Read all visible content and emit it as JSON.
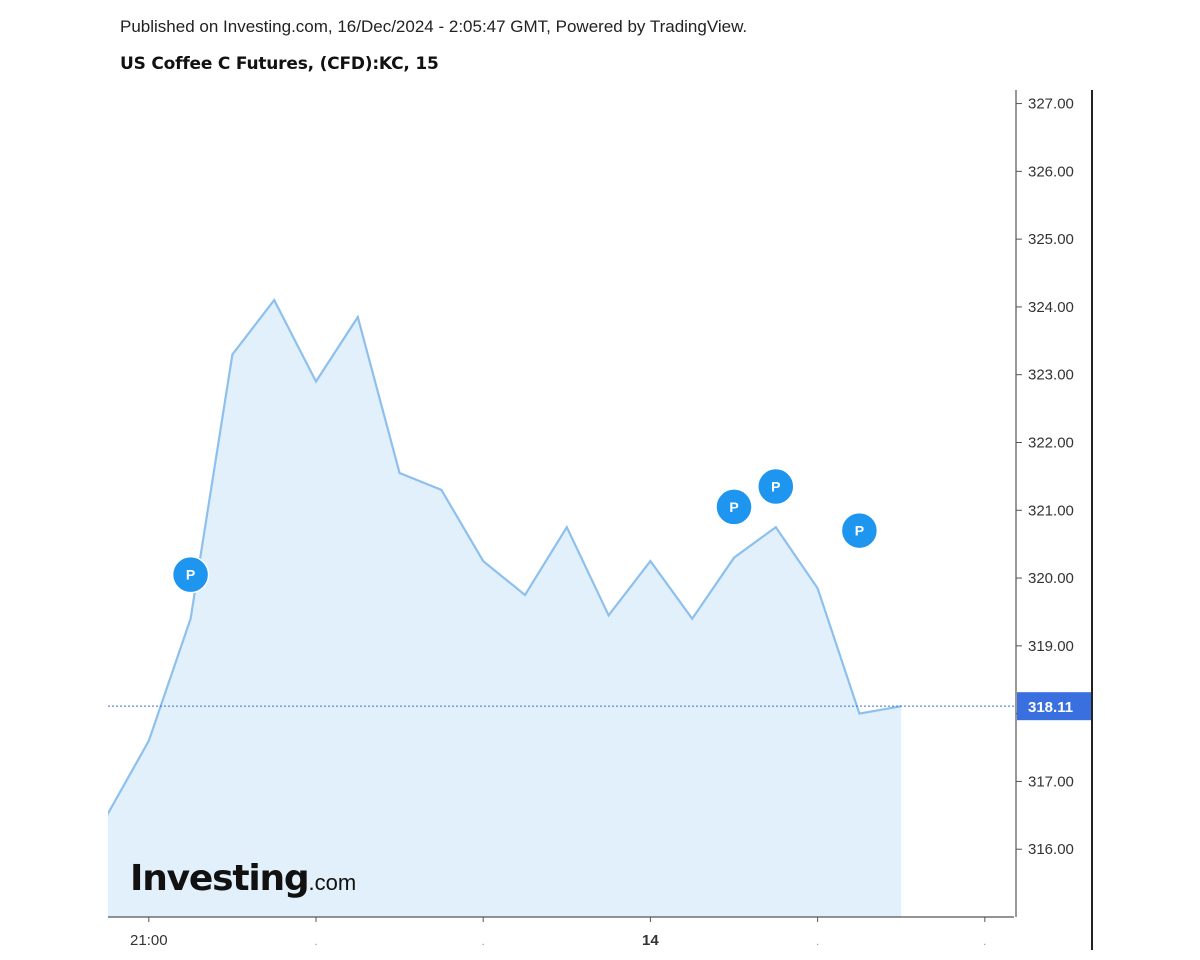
{
  "header": {
    "published": "Published on Investing.com, 16/Dec/2024 - 2:05:47 GMT, Powered by TradingView.",
    "title": "US Coffee C Futures, (CFD):KC, 15"
  },
  "logo": {
    "main": "Investing",
    "suffix": ".com"
  },
  "chart_data": {
    "type": "area",
    "ylim": [
      315.0,
      327.2
    ],
    "x_count": 19,
    "yticks": [
      316,
      317,
      318,
      319,
      320,
      321,
      322,
      323,
      324,
      325,
      326,
      327
    ],
    "ytick_labels": [
      "316.00",
      "317.00",
      "318.00",
      "319.00",
      "320.00",
      "321.00",
      "322.00",
      "323.00",
      "324.00",
      "325.00",
      "326.00",
      "327.00"
    ],
    "xtick_labels": [
      {
        "index": 1,
        "label": "21:00",
        "bold": false
      },
      {
        "index": 5,
        "label": "",
        "bold": false
      },
      {
        "index": 9,
        "label": "",
        "bold": false
      },
      {
        "index": 13,
        "label": "14",
        "bold": true
      },
      {
        "index": 17,
        "label": "",
        "bold": false
      },
      {
        "index": 21,
        "label": "",
        "bold": false
      }
    ],
    "series": [
      {
        "values": [
          316.5,
          317.6,
          319.4,
          323.3,
          324.1,
          322.9,
          323.85,
          321.55,
          321.3,
          320.25,
          319.75,
          320.75,
          319.45,
          320.25,
          319.4,
          320.3,
          320.75,
          319.85,
          318.0,
          318.11
        ]
      }
    ],
    "last_value": 318.11,
    "last_label": "318.11",
    "markers": [
      {
        "index": 2,
        "value": 320.05,
        "label": "P"
      },
      {
        "index": 15,
        "value": 321.05,
        "label": "P"
      },
      {
        "index": 16,
        "value": 321.35,
        "label": "P"
      },
      {
        "index": 18,
        "value": 320.7,
        "label": "P"
      }
    ],
    "colors": {
      "line": "#8ec0ee",
      "fill": "#e1f0fa",
      "marker": "#1e96f0",
      "current": "#3a6fe0",
      "axis": "#555555",
      "tick_text": "#333333"
    },
    "grid": false
  }
}
